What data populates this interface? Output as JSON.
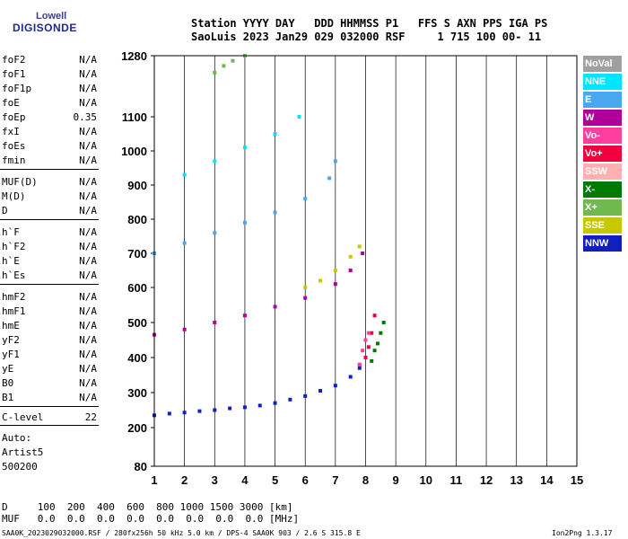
{
  "logo": {
    "line1": "Lowell",
    "line2": "DIGISONDE"
  },
  "header": {
    "line1": "Station YYYY DAY   DDD HHMMSS P1   FFS S AXN PPS IGA PS",
    "line2": "SaoLuis 2023 Jan29 029 032000 RSF     1 715 100 00- 11"
  },
  "parameters_group1": [
    {
      "name": "foF2",
      "value": "N/A"
    },
    {
      "name": "foF1",
      "value": "N/A"
    },
    {
      "name": "foF1p",
      "value": "N/A"
    },
    {
      "name": "foE",
      "value": "N/A"
    },
    {
      "name": "foEp",
      "value": "0.35"
    },
    {
      "name": "fxI",
      "value": "N/A"
    },
    {
      "name": "foEs",
      "value": "N/A"
    },
    {
      "name": "fmin",
      "value": "N/A"
    }
  ],
  "parameters_group2": [
    {
      "name": "MUF(D)",
      "value": "N/A"
    },
    {
      "name": "M(D)",
      "value": "N/A"
    },
    {
      "name": "D",
      "value": "N/A"
    }
  ],
  "parameters_group3": [
    {
      "name": "h`F",
      "value": "N/A"
    },
    {
      "name": "h`F2",
      "value": "N/A"
    },
    {
      "name": "h`E",
      "value": "N/A"
    },
    {
      "name": "h`Es",
      "value": "N/A"
    }
  ],
  "parameters_group4": [
    {
      "name": "hmF2",
      "value": "N/A"
    },
    {
      "name": "hmF1",
      "value": "N/A"
    },
    {
      "name": "hmE",
      "value": "N/A"
    },
    {
      "name": "yF2",
      "value": "N/A"
    },
    {
      "name": "yF1",
      "value": "N/A"
    },
    {
      "name": "yE",
      "value": "N/A"
    },
    {
      "name": "B0",
      "value": "N/A"
    },
    {
      "name": "B1",
      "value": "N/A"
    }
  ],
  "c_level": {
    "name": "C-level",
    "value": "22"
  },
  "auto": {
    "label": "Auto:",
    "artist": "Artist5",
    "code": "500200"
  },
  "legend": [
    {
      "label": "NoVal",
      "color": "#a0a0a0"
    },
    {
      "label": "NNE",
      "color": "#00e5ff"
    },
    {
      "label": "E",
      "color": "#4aa8f0"
    },
    {
      "label": "W",
      "color": "#b0009a"
    },
    {
      "label": "Vo-",
      "color": "#ff3fa0"
    },
    {
      "label": "Vo+",
      "color": "#f0003c"
    },
    {
      "label": "SSW",
      "color": "#ffb0b0"
    },
    {
      "label": "X-",
      "color": "#007a00"
    },
    {
      "label": "X+",
      "color": "#70b850"
    },
    {
      "label": "SSE",
      "color": "#c8c800"
    },
    {
      "label": "NNW",
      "color": "#1020c0"
    }
  ],
  "footer": {
    "d_row": "D     100  200  400  600  800 1000 1500 3000 [km]",
    "muf_row": "MUF   0.0  0.0  0.0  0.0  0.0  0.0  0.0  0.0 [MHz]",
    "info": "SAA0K_2023029032000.RSF / 280fx256h 50 kHz 5.0 km / DPS-4 SAA0K 903 / 2.6 S 315.8 E",
    "version": "Ion2Png 1.3.17"
  },
  "chart_data": {
    "type": "scatter",
    "x_ticks": [
      "1",
      "2",
      "3",
      "4",
      "5",
      "6",
      "7",
      "8",
      "9",
      "10",
      "11",
      "12",
      "13",
      "14",
      "15"
    ],
    "y_ticks": [
      "80",
      "200",
      "300",
      "400",
      "500",
      "600",
      "700",
      "800",
      "900",
      "1000",
      "1100",
      "1280"
    ],
    "xlim": [
      1,
      15
    ],
    "ylim": [
      80,
      1280
    ],
    "grid": true,
    "series": [
      {
        "name": "NNW",
        "color": "#1020c0",
        "x": [
          1.0,
          1.5,
          2.0,
          2.5,
          3.0,
          3.5,
          4.0,
          4.5,
          5.0,
          5.5,
          6.0,
          6.5,
          7.0,
          7.5,
          7.8
        ],
        "y": [
          235,
          240,
          243,
          247,
          250,
          255,
          258,
          263,
          270,
          280,
          290,
          305,
          320,
          345,
          370
        ]
      },
      {
        "name": "Vo+",
        "color": "#f0003c",
        "x": [
          7.8,
          8.0,
          8.1,
          8.2,
          8.3
        ],
        "y": [
          380,
          400,
          430,
          470,
          520
        ]
      },
      {
        "name": "X-",
        "color": "#007a00",
        "x": [
          8.2,
          8.3,
          8.4,
          8.5,
          8.6
        ],
        "y": [
          390,
          420,
          440,
          470,
          500
        ]
      },
      {
        "name": "Vo-",
        "color": "#ff3fa0",
        "x": [
          7.8,
          7.9,
          8.0,
          8.1
        ],
        "y": [
          380,
          420,
          450,
          470
        ]
      },
      {
        "name": "W",
        "color": "#b0009a",
        "x": [
          1.0,
          2.0,
          3.0,
          4.0,
          5.0,
          6.0,
          7.0,
          7.5,
          7.9
        ],
        "y": [
          465,
          480,
          500,
          520,
          545,
          570,
          610,
          650,
          700
        ]
      },
      {
        "name": "SSE",
        "color": "#c8c800",
        "x": [
          6.0,
          6.5,
          7.0,
          7.5,
          7.8
        ],
        "y": [
          600,
          620,
          650,
          690,
          720
        ]
      },
      {
        "name": "E",
        "color": "#4aa8f0",
        "x": [
          1.0,
          2.0,
          3.0,
          4.0,
          5.0,
          6.0,
          6.8,
          7.0
        ],
        "y": [
          700,
          730,
          760,
          790,
          820,
          860,
          920,
          970
        ]
      },
      {
        "name": "NNE",
        "color": "#00e5ff",
        "x": [
          2.0,
          3.0,
          4.0,
          5.0,
          5.8
        ],
        "y": [
          930,
          970,
          1010,
          1050,
          1100
        ]
      },
      {
        "name": "X+",
        "color": "#70b850",
        "x": [
          3.0,
          3.3,
          3.6,
          4.0
        ],
        "y": [
          1230,
          1250,
          1265,
          1280
        ]
      }
    ]
  }
}
